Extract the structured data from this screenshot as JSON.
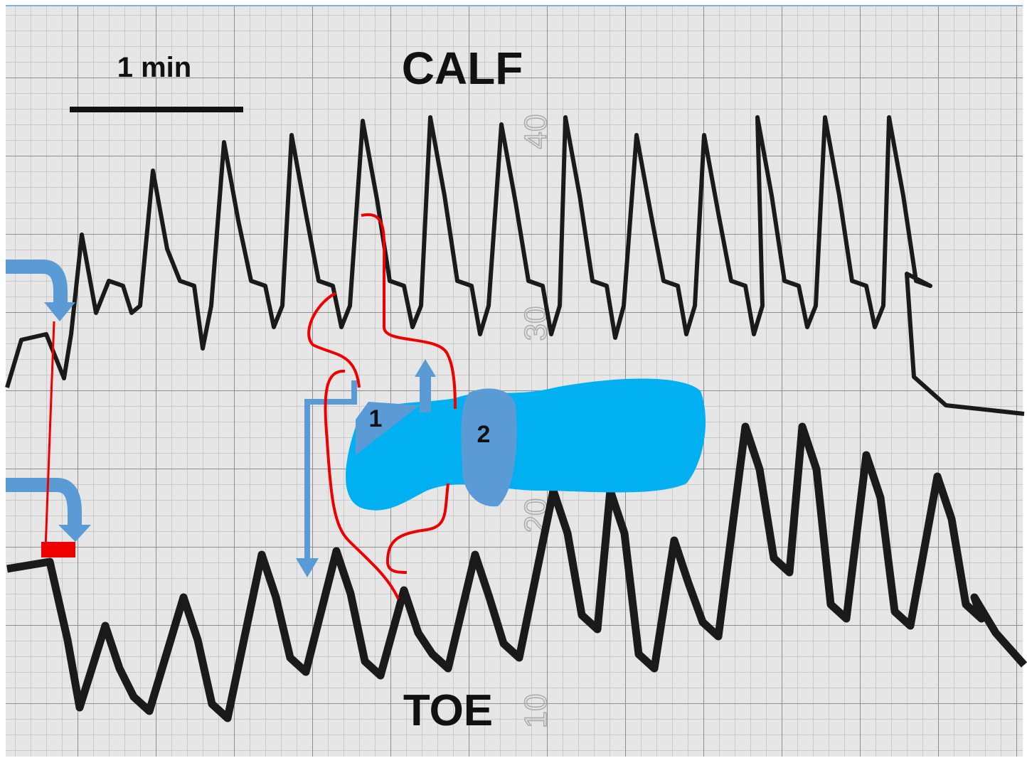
{
  "scale_bar": {
    "label": "1 min"
  },
  "traces": {
    "upper_label": "CALF",
    "lower_label": "TOE"
  },
  "diagram": {
    "joint_1": "1",
    "joint_2": "2"
  },
  "paper_scale_labels": [
    "40",
    "30",
    "20",
    "10"
  ]
}
